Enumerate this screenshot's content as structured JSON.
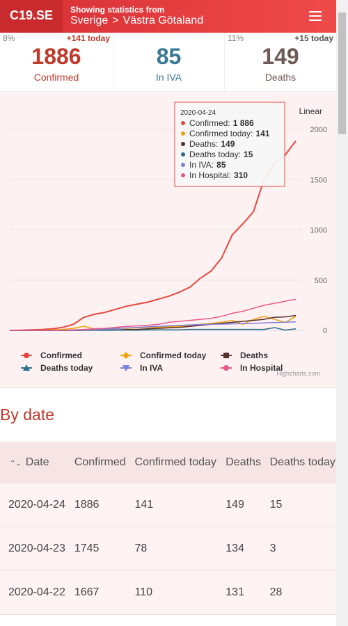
{
  "header": {
    "logo": "C19.SE",
    "caption": "Showing statistics from",
    "crumbs": [
      "Sverige",
      ">",
      "Västra Götaland"
    ]
  },
  "stats": [
    {
      "percent": "8%",
      "delta": "+141 today",
      "value": 1886,
      "label": "Confirmed"
    },
    {
      "value": 85,
      "label": "In IVA"
    },
    {
      "percent": "11%",
      "delta": "+15 today",
      "value": 149,
      "label": "Deaths"
    }
  ],
  "chart_data": {
    "type": "line",
    "scale_buttons": [
      "Logarithmic",
      "Linear"
    ],
    "ylim": [
      0,
      2000
    ],
    "yticks": [
      0,
      500,
      1000,
      1500,
      2000
    ],
    "grid": true,
    "credit": "Highcharts.com",
    "series": [
      {
        "name": "Confirmed",
        "color": "#e8473c",
        "marker": "circle",
        "values": [
          0,
          2,
          5,
          8,
          15,
          30,
          60,
          130,
          160,
          180,
          210,
          240,
          260,
          280,
          310,
          340,
          380,
          430,
          520,
          590,
          720,
          950,
          1060,
          1180,
          1500,
          1667,
          1745,
          1886
        ]
      },
      {
        "name": "Confirmed today",
        "color": "#f0a30a",
        "marker": "diamond",
        "values": [
          0,
          0,
          1,
          2,
          5,
          10,
          20,
          40,
          15,
          20,
          25,
          20,
          25,
          30,
          30,
          35,
          40,
          45,
          60,
          70,
          80,
          100,
          60,
          110,
          140,
          110,
          78,
          141
        ]
      },
      {
        "name": "Deaths",
        "color": "#5b2c2c",
        "marker": "square",
        "values": [
          0,
          0,
          0,
          0,
          0,
          0,
          0,
          1,
          2,
          3,
          5,
          8,
          10,
          15,
          20,
          25,
          30,
          40,
          50,
          60,
          70,
          80,
          90,
          100,
          110,
          131,
          134,
          149
        ]
      },
      {
        "name": "Deaths today",
        "color": "#2a6f8c",
        "marker": "triangle",
        "values": [
          0,
          0,
          0,
          0,
          0,
          0,
          0,
          1,
          1,
          1,
          2,
          3,
          2,
          5,
          5,
          5,
          5,
          10,
          10,
          10,
          10,
          10,
          10,
          10,
          10,
          28,
          3,
          15
        ]
      },
      {
        "name": "In IVA",
        "color": "#7f7fdd",
        "marker": "triangle-down",
        "values": [
          0,
          0,
          0,
          0,
          0,
          0,
          2,
          5,
          8,
          12,
          18,
          25,
          30,
          35,
          40,
          45,
          50,
          55,
          58,
          60,
          62,
          65,
          68,
          70,
          75,
          78,
          82,
          85
        ]
      },
      {
        "name": "In Hospital",
        "color": "#e8588a",
        "marker": "circle",
        "values": [
          0,
          0,
          0,
          0,
          0,
          2,
          5,
          10,
          15,
          20,
          30,
          40,
          45,
          50,
          60,
          80,
          90,
          100,
          110,
          120,
          140,
          170,
          190,
          220,
          250,
          270,
          290,
          310
        ]
      }
    ],
    "tooltip": {
      "date": "2020-04-24",
      "items": [
        {
          "label": "Confirmed:",
          "value": "1 886"
        },
        {
          "label": "Confirmed today:",
          "value": 141
        },
        {
          "label": "Deaths:",
          "value": 149
        },
        {
          "label": "Deaths today:",
          "value": 15
        },
        {
          "label": "In IVA:",
          "value": 85
        },
        {
          "label": "In Hospital:",
          "value": 310
        }
      ]
    }
  },
  "section_title": "By date",
  "table": {
    "sort_icon": "⌃⌄",
    "headers": [
      "Date",
      "Confirmed",
      "Confirmed today",
      "Deaths",
      "Deaths today"
    ],
    "rows": [
      [
        "2020-04-24",
        1886,
        141,
        149,
        15
      ],
      [
        "2020-04-23",
        1745,
        78,
        134,
        3
      ],
      [
        "2020-04-22",
        1667,
        110,
        131,
        28
      ]
    ]
  }
}
